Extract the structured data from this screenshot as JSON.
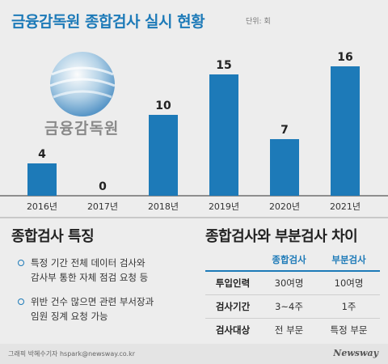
{
  "header": {
    "title": "금융감독원 종합검사 실시 현황",
    "unit": "단위: 회"
  },
  "logo": {
    "text": "금융감독원"
  },
  "chart_data": {
    "type": "bar",
    "categories": [
      "2016년",
      "2017년",
      "2018년",
      "2019년",
      "2020년",
      "2021년"
    ],
    "values": [
      4,
      0,
      10,
      15,
      7,
      16
    ],
    "labels": [
      "4",
      "0",
      "10",
      "15",
      "7",
      "16"
    ],
    "title": "금융감독원 종합검사 실시 현황",
    "xlabel": "",
    "ylabel": "",
    "ylim": [
      0,
      16
    ],
    "grid": false,
    "legend": "none",
    "color": "#1d7ab8"
  },
  "features": {
    "title": "종합검사 특징",
    "items": [
      {
        "lines": [
          "특정 기간 전체 데이터 검사와",
          "감사부 통한 자체 점검 요청 등"
        ]
      },
      {
        "lines": [
          "위반 건수 많으면 관련 부서장과",
          "임원 징계 요청 가능"
        ]
      }
    ]
  },
  "comparison": {
    "title": "종합검사와 부분검사 차이",
    "headers": [
      "",
      "종합검사",
      "부분검사"
    ],
    "rows": [
      {
        "label": "투입인력",
        "full": "30여명",
        "partial": "10여명"
      },
      {
        "label": "검사기간",
        "full": "3~4주",
        "partial": "1주"
      },
      {
        "label": "검사대상",
        "full": "전 부문",
        "partial": "특정 부문"
      }
    ]
  },
  "footer": {
    "credit": "그래픽 박혜수기자 hspark@newsway.co.kr",
    "brand": "Newsway"
  }
}
